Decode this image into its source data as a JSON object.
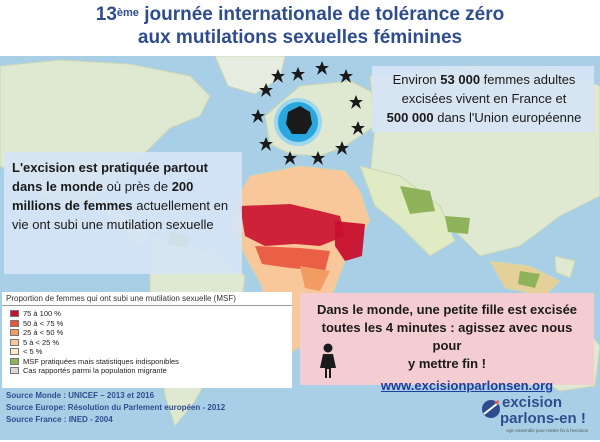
{
  "title": {
    "line1_prefix": "13",
    "line1_sup": "ème",
    "line1_rest": " journée internationale de tolérance zéro",
    "line2": "aux mutilations sexuelles féminines"
  },
  "eu_box": {
    "t1": "Environ ",
    "t1_bold": "53 000",
    "t2": " femmes adultes",
    "t3": "excisées vivent en France et",
    "t4_bold": "500 000",
    "t5": " dans l'Union européenne"
  },
  "world_box": {
    "b1": "L'excision est pratiquée partout dans le monde",
    "t1": " où près de ",
    "b2": "200 millions de femmes",
    "t2": " actuellement en vie ont subi une mutilation sexuelle"
  },
  "pink_box": {
    "l1": "Dans le monde, une petite fille est excisée",
    "l2": "toutes les 4 minutes : agissez avec nous pour",
    "l3": "y mettre fin !",
    "url": "www.excisionparlonsen.org"
  },
  "legend": {
    "title": "Proportion de femmes qui ont subi une mutilation sexuelle (MSF)",
    "items": [
      {
        "label": "75 à 100 %",
        "color": "#c8102e"
      },
      {
        "label": "50 à < 75 %",
        "color": "#e8543e"
      },
      {
        "label": "25 à < 50 %",
        "color": "#f29b63"
      },
      {
        "label": "5 à < 25 %",
        "color": "#f8c89a"
      },
      {
        "label": "< 5 %",
        "color": "#fcebc8"
      },
      {
        "label": "MSF pratiquées mais statistiques indisponibles",
        "color": "#8fb35a"
      },
      {
        "label": "Cas rapportés parmi la population migrante",
        "color": "#d9d9d9"
      }
    ]
  },
  "sources": {
    "s1": "Source Monde : UNICEF – 2013 et 2016",
    "s2": "Source Europe: Résolution du Parlement européen - 2012",
    "s3": "Source France : INED - 2004"
  },
  "logo": {
    "word1": "excision",
    "word2": "parlons-en !",
    "tagline": "Agir ensemble pour mettre fin à l'excision"
  },
  "colors": {
    "ocean": "#a9cfe6",
    "land": "#dfe8d0",
    "accent_blue": "#2e4d8f",
    "pink": "#f4cdd2",
    "highlight": "#29a8e0"
  }
}
